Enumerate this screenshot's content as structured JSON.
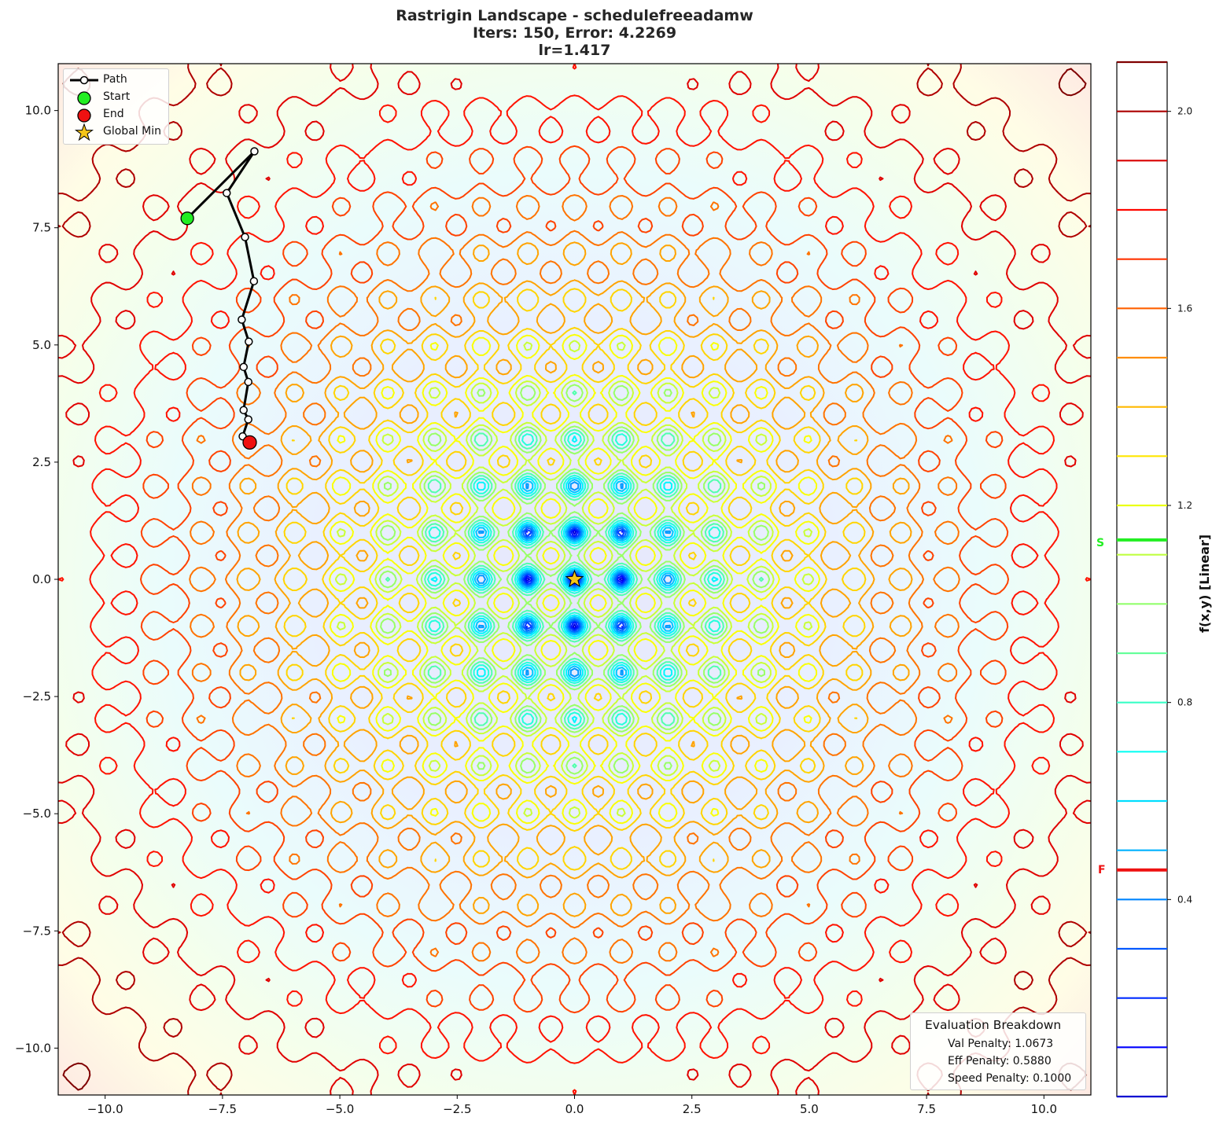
{
  "title": {
    "line1": "Rastrigin Landscape - schedulefreeadamw",
    "line2": "Iters: 150, Error: 4.2269",
    "line3": "lr=1.417"
  },
  "legend": {
    "items": [
      {
        "label": "Path",
        "symbol": "line-with-white-circle",
        "color": "#000000"
      },
      {
        "label": "Start",
        "symbol": "circle",
        "color": "#22ee22"
      },
      {
        "label": "End",
        "symbol": "circle",
        "color": "#ee1111"
      },
      {
        "label": "Global Min",
        "symbol": "star",
        "color": "#f5c518"
      }
    ]
  },
  "evaluation": {
    "heading": "Evaluation Breakdown",
    "val_penalty": "Val Penalty: 1.0673",
    "eff_penalty": "Eff Penalty: 0.5880",
    "speed_penalty": "Speed Penalty: 0.1000"
  },
  "colorbar": {
    "label": "f(x,y) [Linear]",
    "ticks": [
      "2.0",
      "1.6",
      "1.2",
      "0.8",
      "0.4"
    ],
    "markers": [
      {
        "label": "S",
        "color": "#22ee22",
        "value": 1.13
      },
      {
        "label": "F",
        "color": "#ee1111",
        "value": 0.46
      }
    ]
  },
  "chart_data": {
    "type": "contour",
    "title": "Rastrigin Landscape - schedulefreeadamw\nIters: 150, Error: 4.2269\nlr=1.417",
    "xlabel": "",
    "ylabel": "",
    "xlim": [
      -11,
      11
    ],
    "ylim": [
      -11,
      11
    ],
    "x_ticks": [
      "-10.0",
      "-7.5",
      "-5.0",
      "-2.5",
      "0.0",
      "2.5",
      "5.0",
      "7.5",
      "10.0"
    ],
    "y_ticks": [
      "10.0",
      "7.5",
      "5.0",
      "2.5",
      "0.0",
      "-2.5",
      "-5.0",
      "-7.5",
      "-10.0"
    ],
    "function": "rastrigin",
    "colormap": "jet",
    "colorbar": {
      "label": "f(x,y) [Linear]",
      "range": [
        0.0,
        2.1
      ],
      "ticks": [
        0.4,
        0.8,
        1.2,
        1.6,
        2.0
      ]
    },
    "contour_levels": [
      0.1,
      0.2,
      0.3,
      0.4,
      0.5,
      0.6,
      0.7,
      0.8,
      0.9,
      1.0,
      1.1,
      1.2,
      1.3,
      1.4,
      1.5,
      1.6,
      1.7,
      1.8,
      1.9,
      2.0,
      2.1
    ],
    "series": [
      {
        "name": "Path",
        "x": [
          -8.25,
          -6.82,
          -7.41,
          -7.02,
          -6.83,
          -7.09,
          -6.94,
          -7.05,
          -6.95,
          -7.05,
          -6.95,
          -7.07,
          -6.92
        ],
        "y": [
          7.7,
          9.13,
          8.24,
          7.3,
          6.36,
          5.54,
          5.07,
          4.53,
          4.21,
          3.61,
          3.41,
          3.05,
          2.92
        ]
      },
      {
        "name": "Start",
        "x": [
          -8.25
        ],
        "y": [
          7.7
        ]
      },
      {
        "name": "End",
        "x": [
          -6.92
        ],
        "y": [
          2.92
        ]
      },
      {
        "name": "Global Min",
        "x": [
          0.0
        ],
        "y": [
          0.0
        ]
      }
    ],
    "legend_position": "upper left",
    "grid": false,
    "annotations": [
      "Evaluation Breakdown",
      "Val Penalty: 1.0673",
      "Eff Penalty: 0.5880",
      "Speed Penalty: 0.1000"
    ]
  }
}
